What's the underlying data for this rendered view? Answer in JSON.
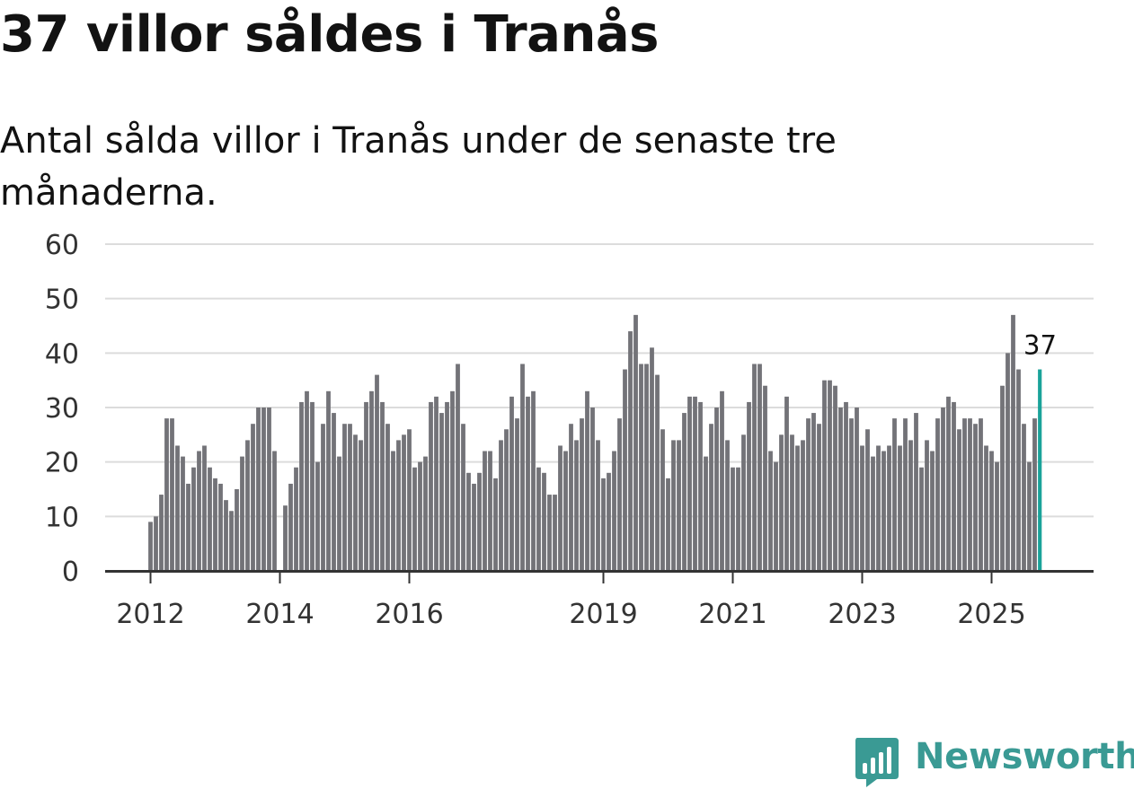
{
  "title": "37 villor såldes i Tranås",
  "subtitle": "Antal sålda villor i Tranås under de senaste tre månaderna.",
  "brand": {
    "name": "Newsworthy",
    "icon": "newsworthy-logo-icon",
    "color": "#3a9a94"
  },
  "chart_data": {
    "type": "bar",
    "title": "37 villor såldes i Tranås",
    "subtitle": "Antal sålda villor i Tranås under de senaste tre månaderna.",
    "xlabel": "",
    "ylabel": "",
    "ylim": [
      0,
      60
    ],
    "yticks": [
      0,
      10,
      20,
      30,
      40,
      50,
      60
    ],
    "grid": true,
    "legend": "none",
    "bar_color": "#737378",
    "highlight_color": "#1aa39a",
    "start_month": "2012-01",
    "xticks": [
      {
        "label": "2012",
        "index": 0
      },
      {
        "label": "2014",
        "index": 24
      },
      {
        "label": "2016",
        "index": 48
      },
      {
        "label": "2019",
        "index": 84
      },
      {
        "label": "2021",
        "index": 108
      },
      {
        "label": "2023",
        "index": 132
      },
      {
        "label": "2025",
        "index": 156
      }
    ],
    "values": [
      9,
      10,
      14,
      28,
      28,
      23,
      21,
      16,
      19,
      22,
      23,
      19,
      17,
      16,
      13,
      11,
      15,
      21,
      24,
      27,
      30,
      30,
      30,
      22,
      null,
      12,
      16,
      19,
      31,
      33,
      31,
      20,
      27,
      33,
      29,
      21,
      27,
      27,
      25,
      24,
      31,
      33,
      36,
      31,
      27,
      22,
      24,
      25,
      26,
      19,
      20,
      21,
      31,
      32,
      29,
      31,
      33,
      38,
      27,
      18,
      16,
      18,
      22,
      22,
      17,
      24,
      26,
      32,
      28,
      38,
      32,
      33,
      19,
      18,
      14,
      14,
      23,
      22,
      27,
      24,
      28,
      33,
      30,
      24,
      17,
      18,
      22,
      28,
      37,
      44,
      47,
      38,
      38,
      41,
      36,
      26,
      17,
      24,
      24,
      29,
      32,
      32,
      31,
      21,
      27,
      30,
      33,
      24,
      19,
      19,
      25,
      31,
      38,
      38,
      34,
      22,
      20,
      25,
      32,
      25,
      23,
      24,
      28,
      29,
      27,
      35,
      35,
      34,
      30,
      31,
      28,
      30,
      23,
      26,
      21,
      23,
      22,
      23,
      28,
      23,
      28,
      24,
      29,
      19,
      24,
      22,
      28,
      30,
      32,
      31,
      26,
      28,
      28,
      27,
      28,
      23,
      22,
      20,
      34,
      40,
      47,
      37,
      27,
      20,
      28,
      37
    ],
    "highlight_last": true,
    "last_value_label": "37"
  }
}
